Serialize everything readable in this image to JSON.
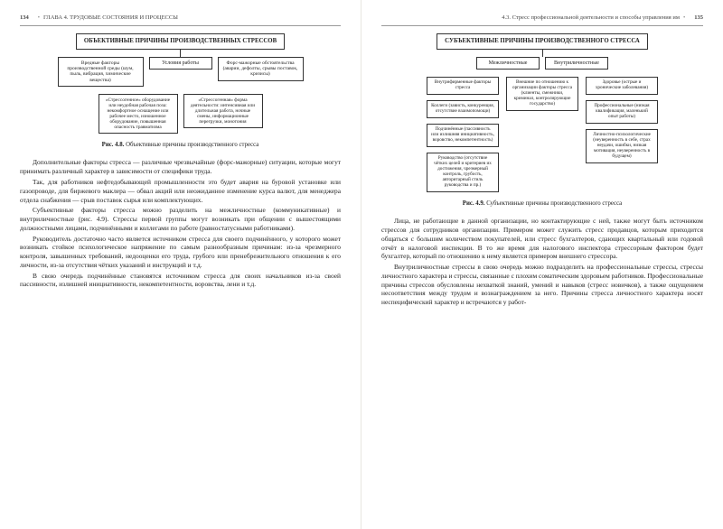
{
  "left": {
    "pageNumber": "134",
    "runningHead": "ГЛАВА 4. ТРУДОВЫЕ СОСТОЯНИЯ И ПРОЦЕССЫ",
    "diagram": {
      "title": "ОБЪЕКТИВНЫЕ ПРИЧИНЫ ПРОИЗВОДСТВЕННЫХ СТРЕССОВ",
      "row2": [
        "Вредные факторы производственной среды (шум, пыль, вибрация, химические вещества)",
        "Условия работы",
        "Форс-мажорные обстоятельства (аварии, дефолты, срывы поставок, кризисы)"
      ],
      "row3": [
        "«Стрессогенное» оборудование или неудобная рабочая поза: некомфортное оснащение или рабочее место, изношенное оборудование, повышенная опасность травматизма",
        "«Стрессогенная» форма деятельности: интенсивная или длительная работа, ночные смены, информационные перегрузки, монотония"
      ]
    },
    "caption": {
      "label": "Рис. 4.8.",
      "text": "Объективные причины производственного стресса"
    },
    "paragraphs": [
      "Дополнительные факторы стресса — различные чрезвычайные (форс-мажорные) ситуации, которые могут принимать различный характер в зависимости от специфики труда.",
      "Так, для работников нефтедобывающей промышленности это будет авария на буровой установке или газопроводе, для биржевого маклера — обвал акций или неожиданное изменение курса валют, для менеджера отдела снабжения — срыв поставок сырья или комплектующих.",
      "Субъективные факторы стресса можно разделить на межличностные (коммуникативные) и внутриличностные (рис. 4.9). Стрессы первой группы могут возникать при общении с вышестоящими должностными лицами, подчинёнными и коллегами по работе (равностатусными работниками).",
      "Руководитель достаточно часто является источником стресса для своего подчинённого, у которого может возникать стойкое психологическое напряжение по самым разнообразным причинам: из-за чрезмерного контроля, завышенных требований, недооценки его труда, грубого или пренебрежительного отношения к его личности, из-за отсутствия чётких указаний и инструкций и т.д.",
      "В свою очередь подчинённые становятся источником стресса для своих начальников из-за своей пассивности, излишней инициативности, некомпетентности, воровства, лени и т.д."
    ]
  },
  "right": {
    "pageNumber": "135",
    "runningHead": "4.3. Стресс профессиональной деятельности и способы управления им",
    "diagram": {
      "title": "СУБЪЕКТИВНЫЕ ПРИЧИНЫ ПРОИЗВОДСТВЕННОГО СТРЕССА",
      "row2": [
        "Межличностные",
        "Внутриличностные"
      ],
      "leftCol": [
        "Внутрифирменные факторы стресса",
        "Коллеги (зависть, конкуренция, отсутствие взаимопомощи)",
        "Подчинённые (пассивность или излишняя инициативность, воровство, некомпетентность)",
        "Руководство (отсутствие чётких целей и критериев их достижения, чрезмерный контроль, грубость, авторитарный стиль руководства и пр.)"
      ],
      "midCol": [
        "Внешние по отношению к организации факторы стресса (клиенты, смежники, криминал, контролирующие государство)"
      ],
      "rightCol": [
        "Здоровье (острые и хронические заболевания)",
        "Профессиональные (низкая квалификация, маленький опыт работы)",
        "Личностно-психологические (неуверенность в себе, страх неудачи, ошибки, низкая мотивация, неуверенность в будущем)"
      ]
    },
    "caption": {
      "label": "Рис. 4.9.",
      "text": "Субъективные причины производственного стресса"
    },
    "paragraphs": [
      "Лица, не работающие в данной организации, но контактирующие с ней, также могут быть источником стрессов для сотрудников организации. Примером может служить стресс продавцов, которым приходится общаться с большим количеством покупателей, или стресс бухгалтеров, сдающих квартальный или годовой отчёт в налоговой инспекции. В то же время для налогового инспектора стрессорным фактором будет бухгалтер, который по отношению к нему является примером внешнего стрессора.",
      "Внутриличностные стрессы в свою очередь можно подразделить на профессиональные стрессы, стрессы личностного характера и стрессы, связанные с плохим соматическим здоровьем работников. Профессиональные причины стрессов обусловлены нехваткой знаний, умений и навыков (стресс новичков), а также ощущением несоответствия между трудом и вознаграждением за него. Причины стресса личностного характера носят неспецифический характер и встречаются у работ-"
    ]
  }
}
